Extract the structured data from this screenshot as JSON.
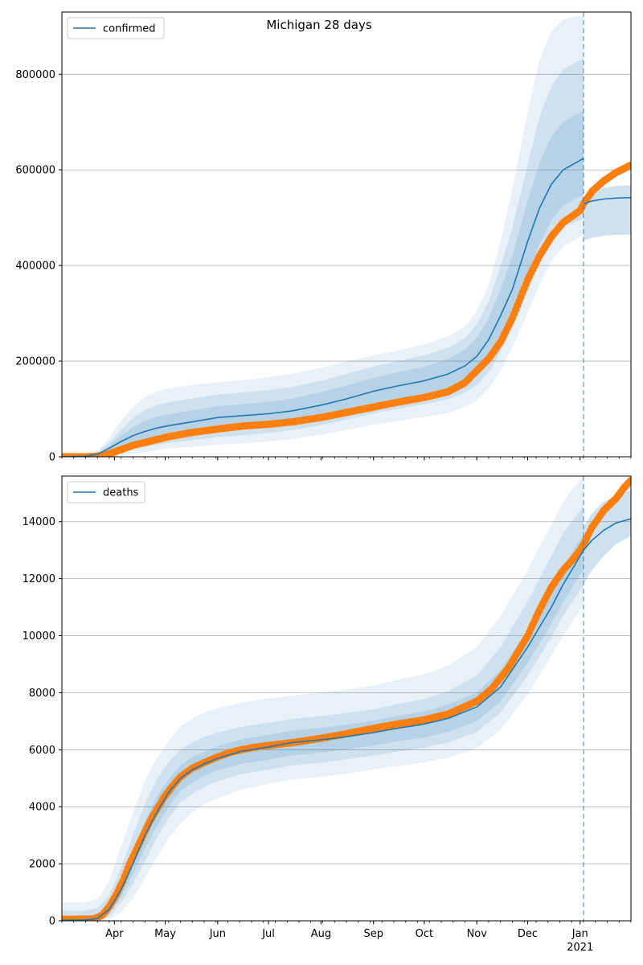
{
  "title": "Michigan 28 days",
  "colors": {
    "model": "#1f77b4",
    "observed": "#ff7f0e",
    "band": "#1f77b4",
    "grid": "#b0b0b0"
  },
  "x_axis": {
    "start": "2020-03-01",
    "end": "2021-01-31",
    "forecast_start": "2021-01-03",
    "month_labels": [
      "Apr",
      "May",
      "Jun",
      "Jul",
      "Aug",
      "Sep",
      "Oct",
      "Nov",
      "Dec",
      "Jan"
    ],
    "year_label": "2021"
  },
  "chart_data": [
    {
      "type": "line",
      "legend": "confirmed",
      "legend_position": "top-left",
      "grid": "y",
      "ylim": [
        0,
        930000
      ],
      "yticks": [
        0,
        200000,
        400000,
        600000,
        800000
      ],
      "ytick_labels": [
        "0",
        "200000",
        "400000",
        "600000",
        "800000"
      ],
      "model": {
        "dates": [
          "2020-03-01",
          "2020-03-15",
          "2020-03-22",
          "2020-03-29",
          "2020-04-05",
          "2020-04-12",
          "2020-04-19",
          "2020-04-26",
          "2020-05-03",
          "2020-05-17",
          "2020-06-01",
          "2020-06-15",
          "2020-07-01",
          "2020-07-15",
          "2020-08-01",
          "2020-08-15",
          "2020-09-01",
          "2020-09-15",
          "2020-10-01",
          "2020-10-15",
          "2020-10-25",
          "2020-11-01",
          "2020-11-08",
          "2020-11-15",
          "2020-11-22",
          "2020-12-01",
          "2020-12-08",
          "2020-12-15",
          "2020-12-22",
          "2021-01-01",
          "2021-01-03"
        ],
        "values": [
          0,
          1000,
          5000,
          18000,
          32000,
          44000,
          53000,
          60000,
          65000,
          73000,
          82000,
          86000,
          90000,
          96000,
          108000,
          120000,
          137000,
          148000,
          159000,
          173000,
          190000,
          210000,
          245000,
          295000,
          350000,
          450000,
          520000,
          570000,
          600000,
          620000,
          624000
        ]
      },
      "bands": [
        {
          "lower": [
            0,
            0,
            0,
            0,
            2000,
            6000,
            10000,
            14000,
            17000,
            21000,
            25000,
            28000,
            32000,
            37000,
            46000,
            55000,
            67000,
            75000,
            83000,
            91000,
            104000,
            118000,
            142000,
            180000,
            230000,
            300000,
            360000,
            410000,
            440000,
            460000,
            464000
          ],
          "upper": [
            0,
            3000,
            12000,
            40000,
            75000,
            105000,
            125000,
            137000,
            143000,
            150000,
            156000,
            160000,
            166000,
            174000,
            186000,
            198000,
            212000,
            222000,
            235000,
            252000,
            272000,
            305000,
            360000,
            450000,
            560000,
            720000,
            830000,
            890000,
            915000,
            922000,
            924000
          ]
        },
        {
          "lower": [
            0,
            0,
            0,
            3000,
            9000,
            15000,
            20000,
            25000,
            29000,
            35000,
            41000,
            45000,
            50000,
            56000,
            66000,
            77000,
            91000,
            100000,
            110000,
            120000,
            134000,
            150000,
            177000,
            220000,
            270000,
            345000,
            405000,
            455000,
            480000,
            495000,
            498000
          ],
          "upper": [
            0,
            2000,
            9000,
            30000,
            57000,
            81000,
            98000,
            108000,
            114000,
            122000,
            130000,
            134000,
            139000,
            146000,
            159000,
            172000,
            189000,
            200000,
            212000,
            228000,
            248000,
            277000,
            324000,
            398000,
            480000,
            610000,
            710000,
            775000,
            810000,
            830000,
            835000
          ]
        },
        {
          "lower": [
            0,
            0,
            1000,
            7000,
            17000,
            26000,
            33000,
            39000,
            43000,
            50000,
            58000,
            62000,
            67000,
            73000,
            84000,
            96000,
            111000,
            120000,
            131000,
            143000,
            158000,
            175000,
            203000,
            250000,
            302000,
            385000,
            445000,
            495000,
            525000,
            545000,
            548000
          ],
          "upper": [
            0,
            1500,
            7000,
            24000,
            44000,
            62000,
            75000,
            84000,
            89000,
            97000,
            106000,
            110000,
            115000,
            122000,
            135000,
            148000,
            165000,
            177000,
            188000,
            204000,
            224000,
            248000,
            290000,
            350000,
            420000,
            535000,
            615000,
            670000,
            700000,
            720000,
            724000
          ]
        }
      ],
      "forecast": {
        "dates": [
          "2021-01-03",
          "2021-01-08",
          "2021-01-15",
          "2021-01-22",
          "2021-01-31"
        ],
        "values": [
          529000,
          535000,
          539000,
          541000,
          542000
        ],
        "lower": [
          452000,
          458000,
          462000,
          464000,
          465000
        ],
        "upper": [
          540000,
          552000,
          562000,
          566000,
          568000
        ]
      },
      "observed": {
        "dates": [
          "2020-03-01",
          "2020-03-15",
          "2020-03-22",
          "2020-03-29",
          "2020-04-05",
          "2020-04-12",
          "2020-04-19",
          "2020-04-26",
          "2020-05-03",
          "2020-05-17",
          "2020-06-01",
          "2020-06-15",
          "2020-07-01",
          "2020-07-15",
          "2020-08-01",
          "2020-08-15",
          "2020-09-01",
          "2020-09-15",
          "2020-10-01",
          "2020-10-15",
          "2020-10-25",
          "2020-11-01",
          "2020-11-08",
          "2020-11-15",
          "2020-11-22",
          "2020-12-01",
          "2020-12-08",
          "2020-12-15",
          "2020-12-22",
          "2021-01-01",
          "2021-01-03",
          "2021-01-08",
          "2021-01-15",
          "2021-01-22",
          "2021-01-31"
        ],
        "values": [
          0,
          0,
          1000,
          6000,
          15000,
          24000,
          30000,
          36000,
          42000,
          51000,
          58000,
          64000,
          68000,
          73000,
          82000,
          92000,
          104000,
          114000,
          124000,
          136000,
          155000,
          180000,
          205000,
          240000,
          290000,
          370000,
          420000,
          460000,
          490000,
          515000,
          529000,
          555000,
          577000,
          594000,
          610000
        ]
      }
    },
    {
      "type": "line",
      "legend": "deaths",
      "legend_position": "top-left",
      "grid": "y",
      "ylim": [
        0,
        15600
      ],
      "yticks": [
        0,
        2000,
        4000,
        6000,
        8000,
        10000,
        12000,
        14000
      ],
      "ytick_labels": [
        "0",
        "2000",
        "4000",
        "6000",
        "8000",
        "10000",
        "12000",
        "14000"
      ],
      "model": {
        "dates": [
          "2020-03-01",
          "2020-03-15",
          "2020-03-22",
          "2020-03-29",
          "2020-04-05",
          "2020-04-12",
          "2020-04-19",
          "2020-04-26",
          "2020-05-03",
          "2020-05-10",
          "2020-05-17",
          "2020-05-24",
          "2020-06-01",
          "2020-06-15",
          "2020-07-01",
          "2020-07-15",
          "2020-08-01",
          "2020-08-15",
          "2020-09-01",
          "2020-09-15",
          "2020-10-01",
          "2020-10-15",
          "2020-11-01",
          "2020-11-15",
          "2020-12-01",
          "2020-12-08",
          "2020-12-15",
          "2020-12-22",
          "2021-01-01",
          "2021-01-03"
        ],
        "values": [
          20,
          30,
          80,
          400,
          1100,
          2000,
          3000,
          3800,
          4500,
          5000,
          5300,
          5500,
          5700,
          5950,
          6100,
          6250,
          6350,
          6450,
          6600,
          6750,
          6900,
          7100,
          7500,
          8200,
          9600,
          10300,
          11000,
          11800,
          12800,
          13000
        ]
      },
      "bands": [
        {
          "lower": [
            0,
            0,
            0,
            50,
            300,
            800,
            1500,
            2200,
            2900,
            3400,
            3800,
            4100,
            4300,
            4600,
            4800,
            4950,
            5050,
            5150,
            5300,
            5420,
            5550,
            5720,
            6050,
            6700,
            7950,
            8600,
            9300,
            10000,
            10900,
            11000
          ],
          "upper": [
            650,
            650,
            750,
            1400,
            2600,
            3800,
            4900,
            5700,
            6300,
            6800,
            7100,
            7300,
            7450,
            7650,
            7800,
            7900,
            8000,
            8100,
            8250,
            8450,
            8650,
            8950,
            9600,
            10700,
            12300,
            13100,
            13900,
            14700,
            15500,
            15600
          ]
        },
        {
          "lower": [
            0,
            0,
            0,
            150,
            650,
            1300,
            2100,
            2900,
            3600,
            4150,
            4450,
            4700,
            4900,
            5150,
            5300,
            5450,
            5550,
            5650,
            5800,
            5930,
            6070,
            6250,
            6620,
            7300,
            8600,
            9260,
            9950,
            10700,
            11600,
            11750
          ],
          "upper": [
            350,
            350,
            450,
            900,
            1850,
            3000,
            4100,
            4950,
            5550,
            6000,
            6250,
            6450,
            6600,
            6800,
            6950,
            7080,
            7180,
            7280,
            7420,
            7600,
            7780,
            8050,
            8600,
            9600,
            11200,
            12000,
            12800,
            13600,
            14400,
            14550
          ]
        },
        {
          "lower": [
            0,
            0,
            20,
            250,
            850,
            1650,
            2550,
            3300,
            4000,
            4550,
            4850,
            5080,
            5280,
            5500,
            5650,
            5800,
            5900,
            6000,
            6150,
            6290,
            6430,
            6620,
            7000,
            7700,
            9050,
            9720,
            10420,
            11180,
            12150,
            12300
          ],
          "upper": [
            150,
            150,
            250,
            650,
            1450,
            2450,
            3500,
            4350,
            4950,
            5450,
            5750,
            5920,
            6120,
            6370,
            6520,
            6670,
            6770,
            6870,
            7020,
            7180,
            7350,
            7580,
            8000,
            8800,
            10200,
            10900,
            11600,
            12400,
            13400,
            13550
          ]
        }
      ],
      "forecast": {
        "dates": [
          "2021-01-03",
          "2021-01-08",
          "2021-01-15",
          "2021-01-22",
          "2021-01-31"
        ],
        "values": [
          13000,
          13350,
          13700,
          13950,
          14100
        ],
        "lower": [
          11800,
          12300,
          12800,
          13200,
          13500
        ],
        "upper": [
          13800,
          14300,
          14700,
          14900,
          15100
        ]
      },
      "observed": {
        "dates": [
          "2020-03-01",
          "2020-03-20",
          "2020-03-25",
          "2020-03-29",
          "2020-04-02",
          "2020-04-06",
          "2020-04-10",
          "2020-04-14",
          "2020-04-18",
          "2020-04-22",
          "2020-04-26",
          "2020-04-30",
          "2020-05-05",
          "2020-05-10",
          "2020-05-17",
          "2020-05-24",
          "2020-06-01",
          "2020-06-08",
          "2020-06-15",
          "2020-06-22",
          "2020-07-01",
          "2020-07-15",
          "2020-08-01",
          "2020-08-15",
          "2020-09-01",
          "2020-09-15",
          "2020-10-01",
          "2020-10-15",
          "2020-11-01",
          "2020-11-10",
          "2020-11-20",
          "2020-12-01",
          "2020-12-08",
          "2020-12-15",
          "2020-12-22",
          "2020-12-28",
          "2021-01-01",
          "2021-01-03",
          "2021-01-08",
          "2021-01-15",
          "2021-01-22",
          "2021-01-27",
          "2021-01-31"
        ],
        "values": [
          50,
          60,
          200,
          500,
          900,
          1400,
          2000,
          2500,
          3000,
          3500,
          3900,
          4300,
          4700,
          5050,
          5350,
          5550,
          5750,
          5900,
          6000,
          6080,
          6150,
          6250,
          6400,
          6550,
          6750,
          6900,
          7050,
          7250,
          7700,
          8150,
          8900,
          10000,
          10900,
          11700,
          12300,
          12700,
          13000,
          13200,
          13800,
          14400,
          14800,
          15200,
          15450
        ]
      }
    }
  ]
}
